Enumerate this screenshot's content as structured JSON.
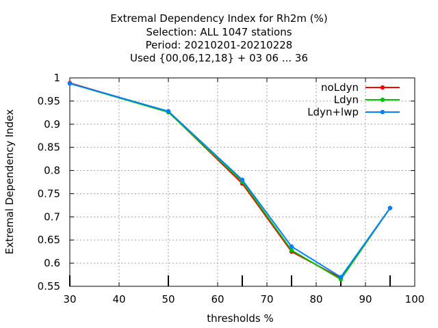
{
  "chart_data": {
    "type": "line",
    "title_lines": [
      "Extremal Dependency Index  for Rh2m (%)",
      "Selection: ALL   1047 stations",
      "Period: 20210201-20210228",
      "Used {00,06,12,18} + 03 06 ... 36"
    ],
    "xlabel": "thresholds %",
    "ylabel": "Extremal Dependency Index",
    "xlim": [
      30,
      100
    ],
    "ylim": [
      0.55,
      1.0
    ],
    "x_ticks": [
      30,
      40,
      50,
      60,
      70,
      80,
      90,
      100
    ],
    "x_tick_labels": [
      "30",
      "40",
      "50",
      "60",
      "70",
      "80",
      "90",
      "100"
    ],
    "y_ticks": [
      0.55,
      0.6,
      0.65,
      0.7,
      0.75,
      0.8,
      0.85,
      0.9,
      0.95,
      1.0
    ],
    "y_tick_labels": [
      "0.55",
      "0.6",
      "0.65",
      "0.7",
      "0.75",
      "0.8",
      "0.85",
      "0.9",
      "0.95",
      "1"
    ],
    "grid": true,
    "legend_position": "top-right",
    "x": [
      30,
      50,
      65,
      75,
      85,
      95
    ],
    "series": [
      {
        "name": "noLdyn",
        "color": "#ff0000",
        "values": [
          0.989,
          0.927,
          0.772,
          0.625,
          0.568,
          0.719
        ]
      },
      {
        "name": "Ldyn",
        "color": "#00c000",
        "values": [
          0.988,
          0.926,
          0.776,
          0.628,
          0.565,
          0.719
        ]
      },
      {
        "name": "Ldyn+lwp",
        "color": "#0080ff",
        "values": [
          0.988,
          0.928,
          0.78,
          0.636,
          0.57,
          0.719
        ]
      }
    ]
  }
}
